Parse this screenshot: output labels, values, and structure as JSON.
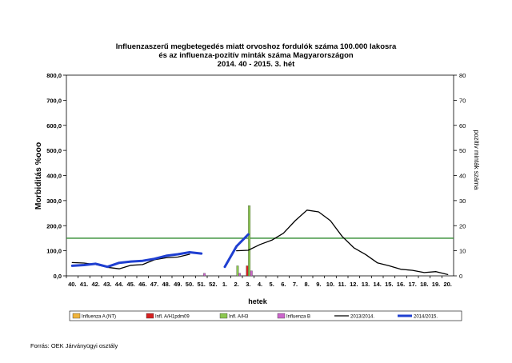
{
  "chart_data": {
    "type": "line",
    "title_lines": [
      "Influenzaszerű megbetegedés miatt orvoshoz fordulók száma 100.000 lakosra",
      "és az influenza-pozitív minták száma Magyarországon",
      "2014. 40 - 2015. 3. hét"
    ],
    "xlabel": "hetek",
    "ylabel": "Morbiditás %ooo",
    "y2label": "pozitív minták száma",
    "categories": [
      "40.",
      "41.",
      "42.",
      "43.",
      "44.",
      "45.",
      "46.",
      "47.",
      "48.",
      "49.",
      "50.",
      "51.",
      "52.",
      "1.",
      "2.",
      "3.",
      "4.",
      "5.",
      "6.",
      "7.",
      "8.",
      "9.",
      "10.",
      "11.",
      "12.",
      "13.",
      "14.",
      "15.",
      "16.",
      "17.",
      "18.",
      "19.",
      "20."
    ],
    "ylim": [
      0,
      800
    ],
    "y_ticks": [
      "0,0",
      "100,0",
      "200,0",
      "300,0",
      "400,0",
      "500,0",
      "600,0",
      "700,0",
      "800,0"
    ],
    "y2lim": [
      0,
      80
    ],
    "y2_ticks": [
      "0",
      "10",
      "20",
      "30",
      "40",
      "50",
      "60",
      "70",
      "80"
    ],
    "threshold": 150,
    "threshold_color": "#2e8b2e",
    "series": [
      {
        "name": "2013/2014.",
        "color": "#000000",
        "values": [
          53,
          51,
          45,
          34,
          28,
          42,
          45,
          64,
          72,
          75,
          86,
          null,
          null,
          null,
          100,
          102,
          125,
          142,
          170,
          220,
          262,
          255,
          220,
          157,
          112,
          85,
          52,
          40,
          26,
          22,
          13,
          17,
          5
        ]
      },
      {
        "name": "2014/2015.",
        "color": "#1f3fd1",
        "values": [
          40,
          43,
          48,
          36,
          52,
          57,
          60,
          68,
          80,
          86,
          94,
          89,
          null,
          36,
          118,
          165,
          null,
          null,
          null,
          null,
          null,
          null,
          null,
          null,
          null,
          null,
          null,
          null,
          null,
          null,
          null,
          null,
          null
        ]
      }
    ],
    "bar_series": [
      {
        "name": "Influenza A (NT)",
        "color": "#f0b43c",
        "values": {}
      },
      {
        "name": "Infl. A/H1pdm09",
        "color": "#d62020",
        "values": {
          "3.": 4
        }
      },
      {
        "name": "Infl. A/H3",
        "color": "#8cc850",
        "values": {
          "2.": 4,
          "3.": 28
        }
      },
      {
        "name": "Influenza B",
        "color": "#cc66cc",
        "values": {
          "51.": 1,
          "2.": 1,
          "3.": 2
        }
      }
    ],
    "legend_position": "bottom"
  },
  "source": "Forrás: OEK Járványügyi osztály"
}
